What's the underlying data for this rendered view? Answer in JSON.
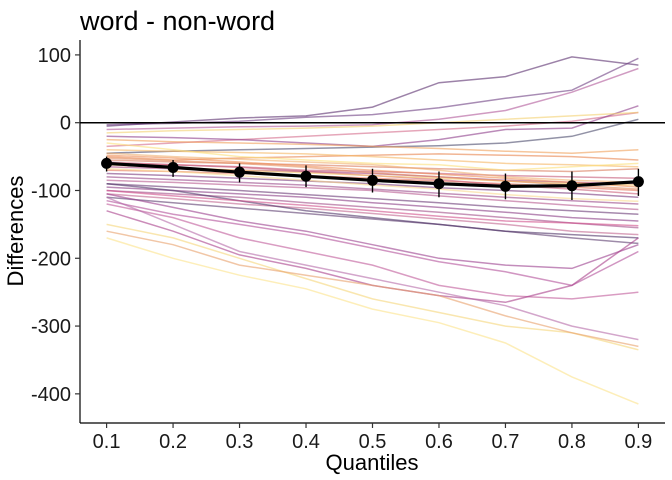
{
  "chart_data": {
    "type": "line",
    "title": "word - non-word",
    "xlabel": "Quantiles",
    "ylabel": "Differences",
    "x": [
      0.1,
      0.2,
      0.3,
      0.4,
      0.5,
      0.6,
      0.7,
      0.8,
      0.9
    ],
    "x_tick_labels": [
      "0.1",
      "0.2",
      "0.3",
      "0.4",
      "0.5",
      "0.6",
      "0.7",
      "0.8",
      "0.9"
    ],
    "y_ticks": [
      100,
      0,
      -100,
      -200,
      -300,
      -400
    ],
    "y_tick_labels": [
      "100",
      "0",
      "-100",
      "-200",
      "-300",
      "-400"
    ],
    "xlim": [
      0.06,
      0.94
    ],
    "ylim": [
      -443,
      122
    ],
    "reference_line_y": 0,
    "grid": false,
    "legend": "none",
    "participants": [
      [
        -5,
        1,
        7,
        10,
        23,
        59,
        68,
        97,
        85
      ],
      [
        -3,
        -1,
        2,
        8,
        12,
        22,
        36,
        48,
        95
      ],
      [
        -10,
        -8,
        -6,
        -5,
        -3,
        5,
        18,
        45,
        80
      ],
      [
        -35,
        -30,
        -25,
        -20,
        -15,
        -10,
        -5,
        2,
        15
      ],
      [
        -20,
        -22,
        -25,
        -30,
        -35,
        -25,
        -10,
        -8,
        25
      ],
      [
        -45,
        -42,
        -40,
        -38,
        -36,
        -34,
        -30,
        -20,
        5
      ],
      [
        -25,
        -28,
        -30,
        -32,
        -35,
        -38,
        -42,
        -45,
        -40
      ],
      [
        -50,
        -55,
        -52,
        -50,
        -48,
        -46,
        -48,
        -50,
        -55
      ],
      [
        -40,
        -42,
        -44,
        -46,
        -50,
        -55,
        -60,
        -62,
        -65
      ],
      [
        -55,
        -58,
        -60,
        -62,
        -65,
        -68,
        -70,
        -72,
        -68
      ],
      [
        -60,
        -62,
        -65,
        -70,
        -72,
        -75,
        -78,
        -80,
        -82
      ],
      [
        -65,
        -68,
        -70,
        -72,
        -75,
        -80,
        -85,
        -88,
        -90
      ],
      [
        -48,
        -52,
        -58,
        -64,
        -70,
        -76,
        -82,
        -88,
        -95
      ],
      [
        -70,
        -72,
        -75,
        -78,
        -82,
        -86,
        -90,
        -95,
        -100
      ],
      [
        -58,
        -62,
        -66,
        -72,
        -78,
        -84,
        -92,
        -98,
        -105
      ],
      [
        -75,
        -78,
        -82,
        -86,
        -90,
        -96,
        -100,
        -104,
        -110
      ],
      [
        -80,
        -84,
        -88,
        -92,
        -98,
        -104,
        -110,
        -115,
        -120
      ],
      [
        -85,
        -88,
        -92,
        -96,
        -100,
        -108,
        -115,
        -122,
        -128
      ],
      [
        -90,
        -95,
        -100,
        -106,
        -112,
        -118,
        -125,
        -130,
        -135
      ],
      [
        -95,
        -100,
        -105,
        -110,
        -118,
        -125,
        -132,
        -140,
        -145
      ],
      [
        -100,
        -105,
        -110,
        -118,
        -125,
        -132,
        -140,
        -148,
        -155
      ],
      [
        -105,
        -112,
        -120,
        -126,
        -134,
        -142,
        -150,
        -160,
        -165
      ],
      [
        -110,
        -118,
        -126,
        -134,
        -142,
        -150,
        -160,
        -170,
        -178
      ],
      [
        -90,
        -100,
        -115,
        -130,
        -140,
        -150,
        -160,
        -165,
        -170
      ],
      [
        -105,
        -125,
        -145,
        -160,
        -180,
        -200,
        -210,
        -215,
        -180
      ],
      [
        -115,
        -135,
        -150,
        -165,
        -185,
        -205,
        -220,
        -240,
        -190
      ],
      [
        -120,
        -140,
        -170,
        -190,
        -210,
        -240,
        -255,
        -260,
        -250
      ],
      [
        -130,
        -160,
        -195,
        -215,
        -240,
        -255,
        -265,
        -240,
        -170
      ],
      [
        -110,
        -150,
        -190,
        -210,
        -230,
        -250,
        -270,
        -300,
        -320
      ],
      [
        -150,
        -170,
        -200,
        -230,
        -260,
        -280,
        -300,
        -310,
        -335
      ],
      [
        -170,
        -200,
        -225,
        -245,
        -275,
        -295,
        -325,
        -375,
        -415
      ],
      [
        -160,
        -180,
        -210,
        -225,
        -240,
        -255,
        -285,
        -310,
        -330
      ],
      [
        -30,
        -40,
        -50,
        -55,
        -60,
        -62,
        -70,
        -65,
        -60
      ],
      [
        -62,
        -66,
        -70,
        -74,
        -78,
        -82,
        -86,
        -90,
        -92
      ],
      [
        -45,
        -50,
        -54,
        -58,
        -62,
        -70,
        -80,
        -85,
        -88
      ],
      [
        -68,
        -72,
        -78,
        -85,
        -92,
        -98,
        -106,
        -112,
        -116
      ],
      [
        -52,
        -56,
        -60,
        -66,
        -74,
        -80,
        -86,
        -92,
        -98
      ],
      [
        -15,
        -12,
        -10,
        -8,
        -5,
        0,
        5,
        10,
        15
      ],
      [
        -100,
        -108,
        -115,
        -122,
        -130,
        -138,
        -145,
        -148,
        -152
      ]
    ],
    "participant_colors": [
      "#5a2f6e",
      "#6e3f82",
      "#b0589a",
      "#d46a8a",
      "#8e3e8a",
      "#4a4a6a",
      "#f0a05a",
      "#e8844c",
      "#f5b562",
      "#d97a5c",
      "#c45a78",
      "#a8487e",
      "#f09058",
      "#e4745a",
      "#cc5f7a",
      "#7a3a7e",
      "#9a4a8a",
      "#b85a90",
      "#6a3a76",
      "#8a3e86",
      "#a24e88",
      "#c26690",
      "#5e3e70",
      "#4e3468",
      "#9b3f8e",
      "#b2509a",
      "#c05a9a",
      "#a8408a",
      "#b66aa8",
      "#f5d57a",
      "#fbe38a",
      "#e8a06a",
      "#fce07a",
      "#f7c86a",
      "#f0b070",
      "#fad890",
      "#e49060",
      "#f3d070",
      "#d0508a"
    ],
    "mean_line": {
      "y": [
        -60,
        -66,
        -73,
        -79,
        -85,
        -90,
        -94,
        -93,
        -87
      ],
      "ci_low": [
        -72,
        -80,
        -88,
        -95,
        -103,
        -110,
        -113,
        -114,
        -108
      ],
      "ci_high": [
        -50,
        -55,
        -60,
        -63,
        -68,
        -72,
        -75,
        -72,
        -68
      ]
    }
  }
}
